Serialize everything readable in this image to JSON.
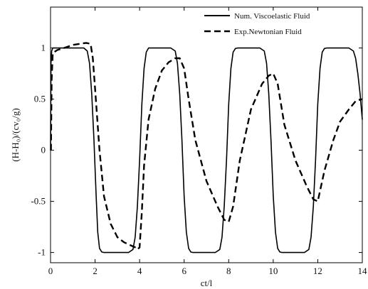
{
  "chart_data": {
    "type": "line",
    "title": "",
    "xlabel": "ct/l",
    "ylabel": "(H-H₀)/(cv₀/g)",
    "xlim": [
      0,
      14
    ],
    "ylim": [
      -1.1,
      1.4
    ],
    "xticks": [
      0,
      2,
      4,
      6,
      8,
      10,
      12,
      14
    ],
    "yticks": [
      -1,
      -0.5,
      0,
      0.5,
      1
    ],
    "xtick_labels": [
      "0",
      "2",
      "4",
      "6",
      "8",
      "10",
      "12",
      "14"
    ],
    "ytick_labels": [
      "-1",
      "-0.5",
      "0",
      "0.5",
      "1"
    ],
    "grid": false,
    "legend_position": "top-right",
    "series": [
      {
        "name": "Num. Viscoelastic Fluid",
        "style": "solid",
        "color": "#000000",
        "x": [
          0,
          0.02,
          0.05,
          0.1,
          0.3,
          1.0,
          1.5,
          1.65,
          1.75,
          1.85,
          1.95,
          2.05,
          2.12,
          2.2,
          2.3,
          2.4,
          3.0,
          3.5,
          3.7,
          3.8,
          3.9,
          4.0,
          4.1,
          4.2,
          4.3,
          4.4,
          5.0,
          5.4,
          5.6,
          5.7,
          5.8,
          5.9,
          6.0,
          6.1,
          6.2,
          6.3,
          6.4,
          7.0,
          7.4,
          7.6,
          7.7,
          7.8,
          7.9,
          8.0,
          8.1,
          8.2,
          8.3,
          8.4,
          9.0,
          9.4,
          9.6,
          9.7,
          9.8,
          9.9,
          10.0,
          10.1,
          10.2,
          10.3,
          10.4,
          11.0,
          11.4,
          11.6,
          11.7,
          11.8,
          11.9,
          12.0,
          12.1,
          12.2,
          12.3,
          12.4,
          13.0,
          13.4,
          13.6,
          13.7,
          13.8,
          13.9,
          14.0
        ],
        "y": [
          0,
          0.85,
          0.97,
          1.0,
          1.0,
          1.0,
          1.0,
          0.97,
          0.85,
          0.55,
          0.1,
          -0.45,
          -0.8,
          -0.96,
          -0.995,
          -1.0,
          -1.0,
          -1.0,
          -0.97,
          -0.85,
          -0.55,
          -0.1,
          0.45,
          0.8,
          0.96,
          1.0,
          1.0,
          1.0,
          0.97,
          0.85,
          0.55,
          0.1,
          -0.45,
          -0.8,
          -0.96,
          -0.995,
          -1.0,
          -1.0,
          -1.0,
          -0.97,
          -0.85,
          -0.55,
          -0.1,
          0.45,
          0.8,
          0.96,
          0.995,
          1.0,
          1.0,
          1.0,
          0.97,
          0.85,
          0.55,
          0.1,
          -0.45,
          -0.8,
          -0.96,
          -0.995,
          -1.0,
          -1.0,
          -1.0,
          -0.97,
          -0.85,
          -0.55,
          -0.1,
          0.45,
          0.8,
          0.96,
          0.995,
          1.0,
          1.0,
          1.0,
          0.97,
          0.9,
          0.75,
          0.55,
          0.3
        ]
      },
      {
        "name": "Exp.Newtonian Fluid",
        "style": "dashed",
        "color": "#000000",
        "x": [
          0.02,
          0.05,
          0.1,
          0.3,
          0.6,
          1.0,
          1.3,
          1.6,
          1.8,
          1.9,
          2.0,
          2.1,
          2.2,
          2.4,
          2.7,
          3.0,
          3.3,
          3.6,
          3.8,
          3.9,
          4.0,
          4.1,
          4.2,
          4.4,
          4.7,
          5.0,
          5.3,
          5.6,
          5.8,
          6.0,
          6.2,
          6.5,
          7.0,
          7.5,
          7.8,
          8.0,
          8.2,
          8.5,
          9.0,
          9.5,
          9.8,
          10.0,
          10.2,
          10.5,
          11.0,
          11.5,
          11.8,
          12.0,
          12.3,
          12.7,
          13.0,
          13.4,
          13.7,
          14.0
        ],
        "y": [
          0.0,
          0.7,
          0.95,
          0.98,
          1.0,
          1.03,
          1.04,
          1.05,
          1.04,
          0.9,
          0.6,
          0.3,
          0.0,
          -0.45,
          -0.72,
          -0.85,
          -0.9,
          -0.93,
          -0.95,
          -0.97,
          -0.95,
          -0.6,
          -0.15,
          0.3,
          0.6,
          0.78,
          0.86,
          0.9,
          0.9,
          0.8,
          0.5,
          0.1,
          -0.3,
          -0.55,
          -0.68,
          -0.7,
          -0.55,
          -0.1,
          0.4,
          0.65,
          0.73,
          0.75,
          0.65,
          0.25,
          -0.1,
          -0.35,
          -0.48,
          -0.5,
          -0.2,
          0.1,
          0.28,
          0.4,
          0.48,
          0.5
        ]
      }
    ]
  }
}
